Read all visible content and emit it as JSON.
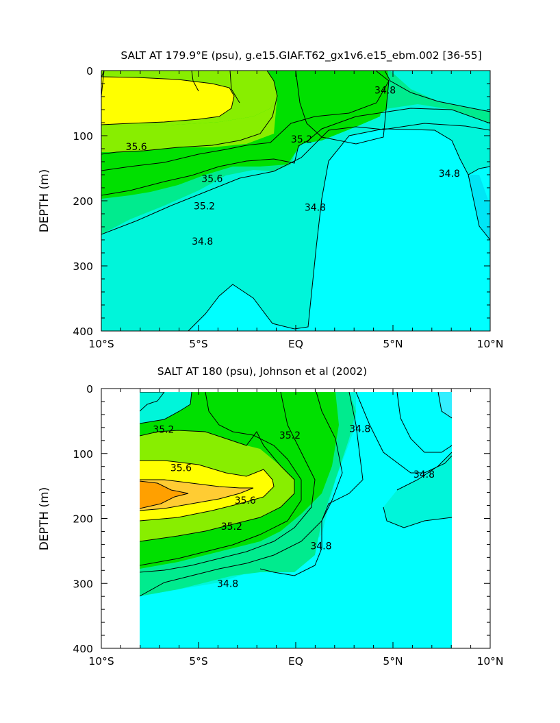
{
  "chart_data": [
    {
      "type": "contour",
      "title": "SALT AT 179.9°E (psu), g.e15.GIAF.T62_gx1v6.e15_ebm.002 [36-55]",
      "ylabel": "DEPTH (m)",
      "xlabel": "",
      "x_ticks": [
        "10°S",
        "5°S",
        "EQ",
        "5°N",
        "10°N"
      ],
      "x_tick_values": [
        -10,
        -5,
        0,
        5,
        10
      ],
      "y_ticks": [
        "0",
        "100",
        "200",
        "300",
        "400"
      ],
      "y_tick_values": [
        0,
        100,
        200,
        300,
        400
      ],
      "xlim": [
        -10,
        10
      ],
      "ylim": [
        400,
        0
      ],
      "contour_interval": 0.2,
      "colors": {
        "34.4": "#00ffff",
        "34.6": "#00f5da",
        "34.8": "#00eb8e",
        "35.0": "#00e000",
        "35.2": "#88ee00",
        "35.4": "#ffff00",
        "35.6": "#ffcc33"
      },
      "contour_labels": [
        {
          "text": "35.6",
          "lat": -8.2,
          "depth": 117
        },
        {
          "text": "35.6",
          "lat": -4.3,
          "depth": 166
        },
        {
          "text": "35.2",
          "lat": -4.7,
          "depth": 208
        },
        {
          "text": "35.2",
          "lat": 0.3,
          "depth": 105
        },
        {
          "text": "34.8",
          "lat": 4.6,
          "depth": 30
        },
        {
          "text": "34.8",
          "lat": 7.9,
          "depth": 158
        },
        {
          "text": "34.8",
          "lat": 1.0,
          "depth": 210
        },
        {
          "text": "34.8",
          "lat": -4.8,
          "depth": 262
        }
      ]
    },
    {
      "type": "contour",
      "title": "SALT AT 180 (psu), Johnson et al (2002)",
      "ylabel": "DEPTH (m)",
      "xlabel": "",
      "x_ticks": [
        "10°S",
        "5°S",
        "EQ",
        "5°N",
        "10°N"
      ],
      "x_tick_values": [
        -10,
        -5,
        0,
        5,
        10
      ],
      "y_ticks": [
        "0",
        "100",
        "200",
        "300",
        "400"
      ],
      "y_tick_values": [
        0,
        100,
        200,
        300,
        400
      ],
      "xlim": [
        -10,
        10
      ],
      "ylim": [
        400,
        0
      ],
      "data_lat_range": [
        -8,
        8
      ],
      "contour_interval": 0.2,
      "colors": {
        "34.4": "#00ffff",
        "34.6": "#00f5da",
        "34.8": "#00eb8e",
        "35.0": "#00e000",
        "35.2": "#88ee00",
        "35.4": "#ffff00",
        "35.6": "#ffcc33",
        "35.8": "#ffa000"
      },
      "contour_labels": [
        {
          "text": "35.2",
          "lat": -6.8,
          "depth": 63
        },
        {
          "text": "35.6",
          "lat": -5.9,
          "depth": 122
        },
        {
          "text": "35.6",
          "lat": -2.6,
          "depth": 172
        },
        {
          "text": "35.2",
          "lat": -3.3,
          "depth": 212
        },
        {
          "text": "35.2",
          "lat": -0.3,
          "depth": 72
        },
        {
          "text": "34.8",
          "lat": 3.3,
          "depth": 62
        },
        {
          "text": "34.8",
          "lat": 6.6,
          "depth": 132
        },
        {
          "text": "34.8",
          "lat": 1.3,
          "depth": 242
        },
        {
          "text": "34.8",
          "lat": -3.5,
          "depth": 300
        }
      ]
    }
  ]
}
